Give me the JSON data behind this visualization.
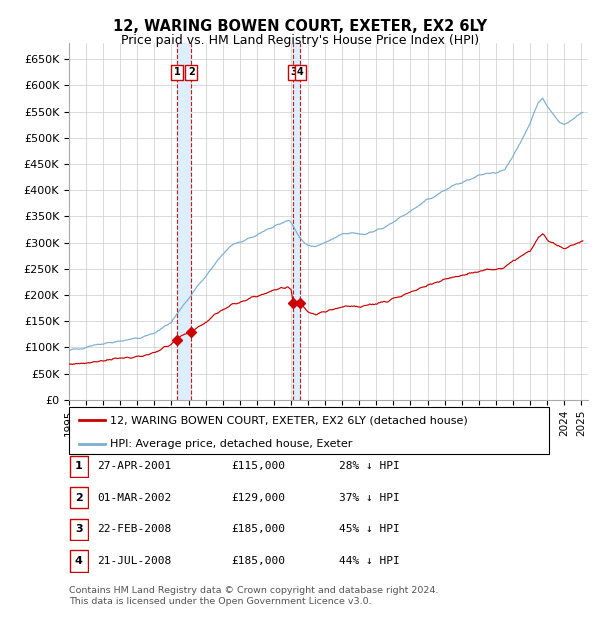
{
  "title": "12, WARING BOWEN COURT, EXETER, EX2 6LY",
  "subtitle": "Price paid vs. HM Land Registry's House Price Index (HPI)",
  "ylim": [
    0,
    680000
  ],
  "yticks": [
    0,
    50000,
    100000,
    150000,
    200000,
    250000,
    300000,
    350000,
    400000,
    450000,
    500000,
    550000,
    600000,
    650000
  ],
  "ytick_labels": [
    "£0",
    "£50K",
    "£100K",
    "£150K",
    "£200K",
    "£250K",
    "£300K",
    "£350K",
    "£400K",
    "£450K",
    "£500K",
    "£550K",
    "£600K",
    "£650K"
  ],
  "hpi_color": "#7bafd4",
  "price_color": "#cc0000",
  "vspan_color": "#ddeeff",
  "vline_color": "#cc0000",
  "transactions": [
    {
      "num": 1,
      "date_label": "27-APR-2001",
      "date_x": 2001.32,
      "price": 115000,
      "pct_label": "28%",
      "dir": "↓",
      "suffix": "HPI"
    },
    {
      "num": 2,
      "date_label": "01-MAR-2002",
      "date_x": 2002.16,
      "price": 129000,
      "pct_label": "37%",
      "dir": "↓",
      "suffix": "HPI"
    },
    {
      "num": 3,
      "date_label": "22-FEB-2008",
      "date_x": 2008.14,
      "price": 185000,
      "pct_label": "45%",
      "dir": "↓",
      "suffix": "HPI"
    },
    {
      "num": 4,
      "date_label": "21-JUL-2008",
      "date_x": 2008.55,
      "price": 185000,
      "pct_label": "44%",
      "dir": "↓",
      "suffix": "HPI"
    }
  ],
  "vspan_ranges": [
    [
      2001.32,
      2002.16
    ],
    [
      2008.14,
      2008.55
    ]
  ],
  "legend_entries": [
    "12, WARING BOWEN COURT, EXETER, EX2 6LY (detached house)",
    "HPI: Average price, detached house, Exeter"
  ],
  "footer_line1": "Contains HM Land Registry data © Crown copyright and database right 2024.",
  "footer_line2": "This data is licensed under the Open Government Licence v3.0.",
  "xlim_start": 1995.0,
  "xlim_end": 2025.4,
  "xtick_years": [
    1995,
    1996,
    1997,
    1998,
    1999,
    2000,
    2001,
    2002,
    2003,
    2004,
    2005,
    2006,
    2007,
    2008,
    2009,
    2010,
    2011,
    2012,
    2013,
    2014,
    2015,
    2016,
    2017,
    2018,
    2019,
    2020,
    2021,
    2022,
    2023,
    2024,
    2025
  ]
}
